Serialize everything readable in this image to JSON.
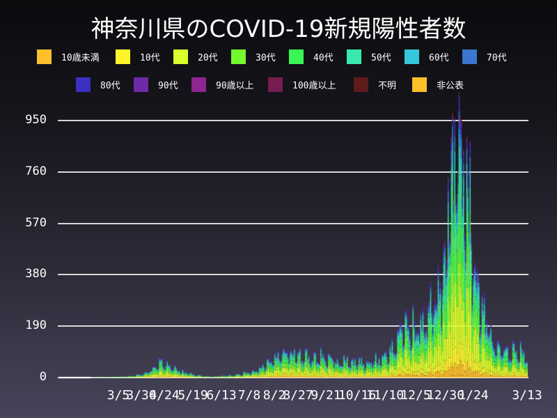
{
  "title": "神奈川県のCOVID-19新規陽性者数",
  "legend": [
    {
      "label": "10歳未満",
      "color": "#ffbf2a"
    },
    {
      "label": "10代",
      "color": "#fff42b"
    },
    {
      "label": "20代",
      "color": "#dcfc2b"
    },
    {
      "label": "30代",
      "color": "#74f931"
    },
    {
      "label": "40代",
      "color": "#38f753"
    },
    {
      "label": "50代",
      "color": "#39e8ad"
    },
    {
      "label": "60代",
      "color": "#34c6dc"
    },
    {
      "label": "70代",
      "color": "#3b76d0"
    },
    {
      "label": "80代",
      "color": "#3b30bf"
    },
    {
      "label": "90代",
      "color": "#6f2aa8"
    },
    {
      "label": "90歳以上",
      "color": "#8e2690"
    },
    {
      "label": "100歳以上",
      "color": "#761d51"
    },
    {
      "label": "不明",
      "color": "#5e1b1b"
    },
    {
      "label": "非公表",
      "color": "#ffbf2a"
    }
  ],
  "chart_data": {
    "type": "bar",
    "stacked": true,
    "title": "神奈川県のCOVID-19新規陽性者数",
    "xlabel": "",
    "ylabel": "",
    "ylim": [
      0,
      1000
    ],
    "yticks": [
      0,
      190,
      380,
      570,
      760,
      950
    ],
    "xticks": [
      "3/5",
      "3/30",
      "4/24",
      "5/19",
      "6/13",
      "7/8",
      "8/2",
      "8/27",
      "9/21",
      "10/16",
      "11/10",
      "12/5",
      "12/30",
      "1/24",
      "3/13"
    ],
    "grid": true,
    "legend_position": "top",
    "series_names": [
      "10歳未満",
      "10代",
      "20代",
      "30代",
      "40代",
      "50代",
      "60代",
      "70代",
      "80代",
      "90代",
      "90歳以上",
      "100歳以上",
      "不明",
      "非公表"
    ],
    "age_mix": [
      0.05,
      0.08,
      0.24,
      0.16,
      0.15,
      0.13,
      0.07,
      0.06,
      0.04,
      0.015,
      0.004,
      0.001,
      0.01,
      0.01
    ],
    "weekly_anchor_dates": [
      "1/10",
      "1/17",
      "1/24",
      "1/31",
      "2/7",
      "2/14",
      "2/21",
      "2/28",
      "3/6",
      "3/13",
      "3/20",
      "3/27",
      "4/3",
      "4/10",
      "4/17",
      "4/24",
      "5/1",
      "5/8",
      "5/15",
      "5/22",
      "5/29",
      "6/5",
      "6/12",
      "6/19",
      "6/26",
      "7/3",
      "7/10",
      "7/17",
      "7/24",
      "7/31",
      "8/7",
      "8/14",
      "8/21",
      "8/28",
      "9/4",
      "9/11",
      "9/18",
      "9/25",
      "10/2",
      "10/9",
      "10/16",
      "10/23",
      "10/30",
      "11/6",
      "11/13",
      "11/20",
      "11/27",
      "12/4",
      "12/11",
      "12/18",
      "12/25",
      "1/1",
      "1/8",
      "1/15",
      "1/22",
      "1/29",
      "2/5",
      "2/12",
      "2/19",
      "2/26",
      "3/5",
      "3/13"
    ],
    "weekly_anchor_values": [
      0,
      0,
      0,
      0,
      0,
      1,
      2,
      3,
      4,
      5,
      8,
      15,
      30,
      55,
      45,
      35,
      25,
      15,
      8,
      5,
      4,
      6,
      8,
      10,
      15,
      20,
      35,
      55,
      70,
      85,
      95,
      90,
      80,
      70,
      75,
      70,
      60,
      65,
      60,
      55,
      55,
      60,
      70,
      100,
      150,
      180,
      190,
      200,
      240,
      300,
      380,
      600,
      900,
      750,
      420,
      250,
      160,
      120,
      100,
      95,
      90,
      80
    ],
    "peak_value_approx": 990
  }
}
